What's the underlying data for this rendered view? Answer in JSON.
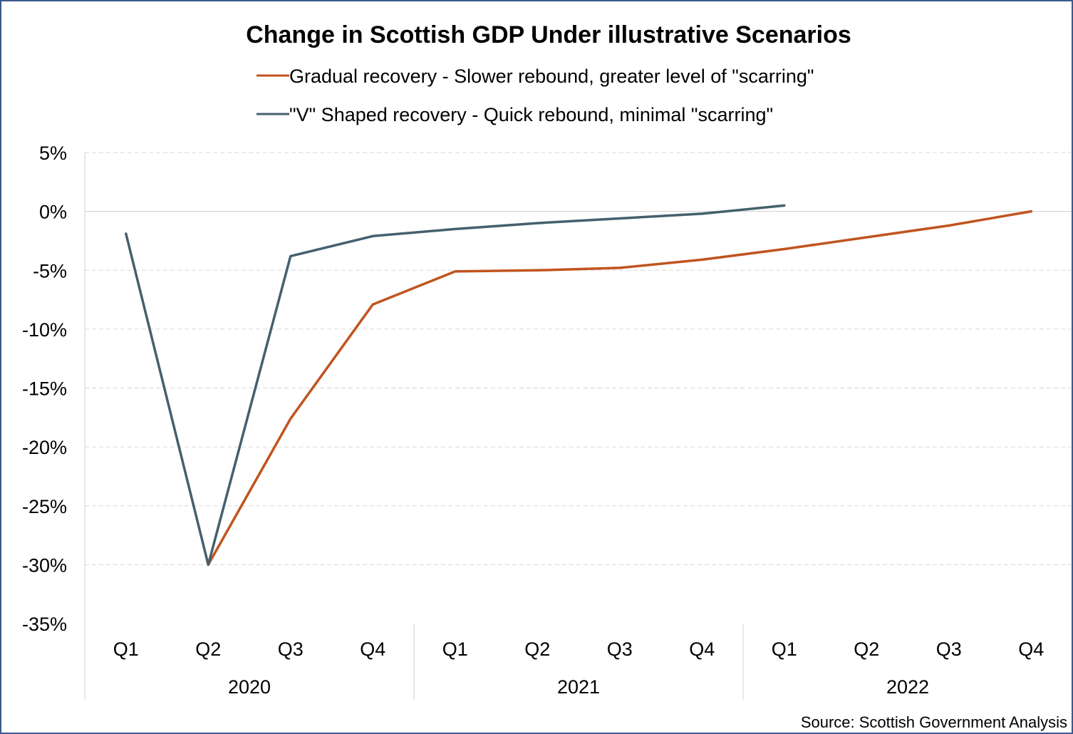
{
  "chart_data": {
    "type": "line",
    "title": "Change in Scottish GDP Under illustrative Scenarios",
    "source": "Source: Scottish Government Analysis",
    "categories": [
      "Q1",
      "Q2",
      "Q3",
      "Q4",
      "Q1",
      "Q2",
      "Q3",
      "Q4",
      "Q1",
      "Q2",
      "Q3",
      "Q4"
    ],
    "years": [
      {
        "label": "2020",
        "span": 4
      },
      {
        "label": "2021",
        "span": 4
      },
      {
        "label": "2022",
        "span": 4
      }
    ],
    "y_ticks": [
      "5%",
      "0%",
      "-5%",
      "-10%",
      "-15%",
      "-20%",
      "-25%",
      "-30%",
      "-35%"
    ],
    "ylim": [
      -35,
      5
    ],
    "y_step": 5,
    "grid": "horizontal dashed",
    "legend_position": "top",
    "series": [
      {
        "name": "Gradual recovery - Slower rebound, greater level of \"scarring\"",
        "color": "#c0541e",
        "values": [
          null,
          -30,
          -17.6,
          -7.9,
          -5.1,
          -5.0,
          -4.8,
          -4.1,
          -3.2,
          -2.2,
          -1.2,
          0.0
        ]
      },
      {
        "name": "\"V\" Shaped recovery - Quick rebound, minimal \"scarring\"",
        "color": "#44606f",
        "values": [
          -1.9,
          -30,
          -3.8,
          -2.1,
          -1.5,
          -1.0,
          -0.6,
          -0.2,
          0.5,
          null,
          null,
          null
        ]
      }
    ]
  }
}
